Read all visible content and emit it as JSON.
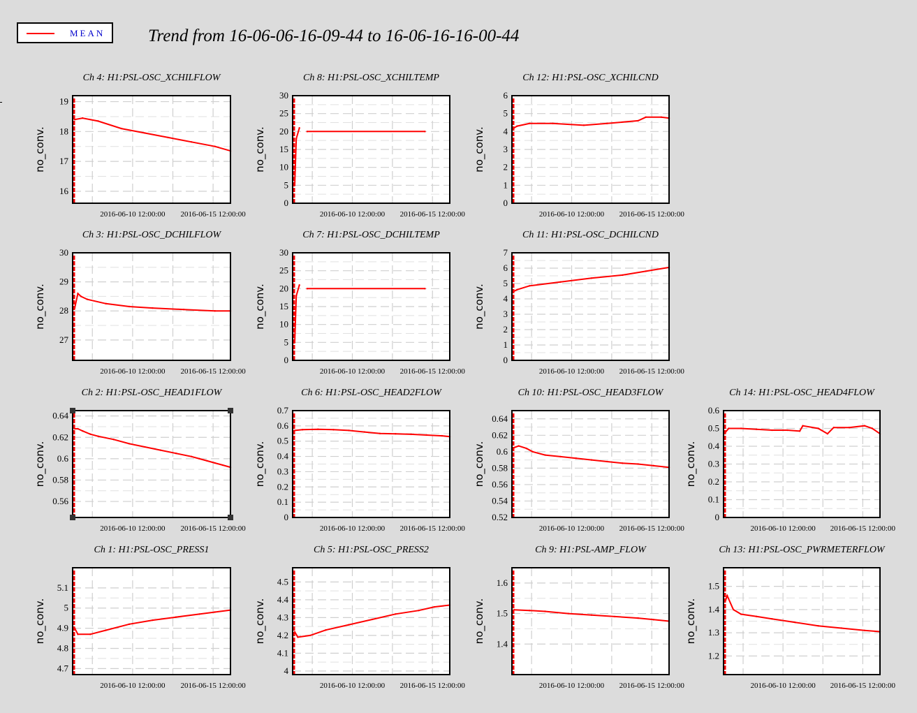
{
  "title": "Trend from 16-06-06-16-09-44 to 16-06-16-16-00-44",
  "legend": {
    "label": "MEAN",
    "color": "#ff0000"
  },
  "chart_data": [
    {
      "type": "line",
      "title": "Ch 4: H1:PSL-OSC_XCHILFLOW",
      "ylabel": "no_conv.",
      "ylim": [
        15.6,
        19.2
      ],
      "yticks": [
        16,
        17,
        18,
        19
      ],
      "ytick_labels": [
        "16",
        "17",
        "18",
        "19"
      ],
      "xtick_labels": [
        "2016-06-10 12:00:00",
        "2016-06-15 12:00:00"
      ],
      "series": [
        {
          "x": [
            0.0,
            0.05,
            0.15,
            0.3,
            0.45,
            0.6,
            0.75,
            0.9,
            1.0
          ],
          "y": [
            18.4,
            18.45,
            18.35,
            18.1,
            17.95,
            17.8,
            17.65,
            17.5,
            17.35
          ]
        }
      ]
    },
    {
      "type": "line",
      "title": "Ch 8: H1:PSL-OSC_XCHILTEMP",
      "ylabel": "no_conv.",
      "ylim": [
        0,
        30
      ],
      "yticks": [
        0,
        5,
        10,
        15,
        20,
        25,
        30
      ],
      "ytick_labels": [
        "0",
        "5",
        "10",
        "15",
        "20",
        "25",
        "30"
      ],
      "xtick_labels": [
        "2016-06-10 12:00:00",
        "2016-06-15 12:00:00"
      ],
      "series": [
        {
          "x": [
            0.0,
            0.01,
            0.03
          ],
          "y": [
            5,
            18,
            21
          ]
        },
        {
          "x": [
            0.08,
            0.84
          ],
          "y": [
            20,
            20
          ]
        }
      ]
    },
    {
      "type": "line",
      "title": "Ch 12: H1:PSL-OSC_XCHILCND",
      "ylabel": "no_conv.",
      "ylim": [
        0,
        6
      ],
      "yticks": [
        0,
        1,
        2,
        3,
        4,
        5,
        6
      ],
      "ytick_labels": [
        "0",
        "1",
        "2",
        "3",
        "4",
        "5",
        "6"
      ],
      "xtick_labels": [
        "2016-06-10 12:00:00",
        "2016-06-15 12:00:00"
      ],
      "series": [
        {
          "x": [
            0.0,
            0.02,
            0.1,
            0.25,
            0.45,
            0.6,
            0.8,
            0.85,
            0.95,
            1.0
          ],
          "y": [
            4.2,
            4.3,
            4.45,
            4.45,
            4.35,
            4.45,
            4.6,
            4.8,
            4.8,
            4.75
          ]
        }
      ]
    },
    {
      "type": "line",
      "title": "Ch 3: H1:PSL-OSC_DCHILFLOW",
      "ylabel": "no_conv.",
      "ylim": [
        26.3,
        30
      ],
      "yticks": [
        27,
        28,
        29,
        30
      ],
      "ytick_labels": [
        "27",
        "28",
        "29",
        "30"
      ],
      "xtick_labels": [
        "2016-06-10 12:00:00",
        "2016-06-15 12:00:00"
      ],
      "series": [
        {
          "x": [
            0.0,
            0.02,
            0.04,
            0.08,
            0.2,
            0.35,
            0.5,
            0.7,
            0.9,
            1.0
          ],
          "y": [
            28.1,
            28.6,
            28.5,
            28.4,
            28.25,
            28.15,
            28.1,
            28.05,
            28.0,
            28.0
          ]
        }
      ]
    },
    {
      "type": "line",
      "title": "Ch 7: H1:PSL-OSC_DCHILTEMP",
      "ylabel": "no_conv.",
      "ylim": [
        0,
        30
      ],
      "yticks": [
        0,
        5,
        10,
        15,
        20,
        25,
        30
      ],
      "ytick_labels": [
        "0",
        "5",
        "10",
        "15",
        "20",
        "25",
        "30"
      ],
      "xtick_labels": [
        "2016-06-10 12:00:00",
        "2016-06-15 12:00:00"
      ],
      "series": [
        {
          "x": [
            0.0,
            0.01,
            0.03
          ],
          "y": [
            5,
            18,
            21
          ]
        },
        {
          "x": [
            0.08,
            0.84
          ],
          "y": [
            20,
            20
          ]
        }
      ]
    },
    {
      "type": "line",
      "title": "Ch 11: H1:PSL-OSC_DCHILCND",
      "ylabel": "no_conv.",
      "ylim": [
        0,
        7
      ],
      "yticks": [
        0,
        1,
        2,
        3,
        4,
        5,
        6,
        7
      ],
      "ytick_labels": [
        "0",
        "1",
        "2",
        "3",
        "4",
        "5",
        "6",
        "7"
      ],
      "xtick_labels": [
        "2016-06-10 12:00:00",
        "2016-06-15 12:00:00"
      ],
      "series": [
        {
          "x": [
            0.0,
            0.02,
            0.1,
            0.3,
            0.5,
            0.7,
            0.85,
            1.0
          ],
          "y": [
            4.5,
            4.6,
            4.85,
            5.1,
            5.35,
            5.55,
            5.8,
            6.05
          ]
        }
      ]
    },
    {
      "type": "line",
      "title": "Ch 2: H1:PSL-OSC_HEAD1FLOW",
      "ylabel": "no_conv.",
      "ylim": [
        0.545,
        0.645
      ],
      "yticks": [
        0.56,
        0.58,
        0.6,
        0.62,
        0.64
      ],
      "ytick_labels": [
        "0.56",
        "0.58",
        "0.6",
        "0.62",
        "0.64"
      ],
      "xtick_labels": [
        "2016-06-10 12:00:00",
        "2016-06-15 12:00:00"
      ],
      "selected": true,
      "series": [
        {
          "x": [
            0.0,
            0.02,
            0.05,
            0.1,
            0.15,
            0.25,
            0.35,
            0.45,
            0.55,
            0.65,
            0.75,
            0.8,
            0.85,
            0.9,
            0.95,
            1.0
          ],
          "y": [
            0.628,
            0.628,
            0.626,
            0.623,
            0.621,
            0.618,
            0.614,
            0.611,
            0.608,
            0.605,
            0.602,
            0.6,
            0.598,
            0.596,
            0.594,
            0.592
          ]
        }
      ]
    },
    {
      "type": "line",
      "title": "Ch 6: H1:PSL-OSC_HEAD2FLOW",
      "ylabel": "no_conv.",
      "ylim": [
        0,
        0.7
      ],
      "yticks": [
        0,
        0.1,
        0.2,
        0.3,
        0.4,
        0.5,
        0.6,
        0.7
      ],
      "ytick_labels": [
        "0",
        "0.1",
        "0.2",
        "0.3",
        "0.4",
        "0.5",
        "0.6",
        "0.7"
      ],
      "xtick_labels": [
        "2016-06-10 12:00:00",
        "2016-06-15 12:00:00"
      ],
      "series": [
        {
          "x": [
            0.0,
            0.05,
            0.15,
            0.25,
            0.35,
            0.45,
            0.55,
            0.65,
            0.75,
            0.85,
            0.95,
            1.0
          ],
          "y": [
            0.57,
            0.575,
            0.578,
            0.575,
            0.57,
            0.56,
            0.55,
            0.548,
            0.545,
            0.54,
            0.535,
            0.53
          ]
        }
      ]
    },
    {
      "type": "line",
      "title": "Ch 10: H1:PSL-OSC_HEAD3FLOW",
      "ylabel": "no_conv.",
      "ylim": [
        0.52,
        0.65
      ],
      "yticks": [
        0.52,
        0.54,
        0.56,
        0.58,
        0.6,
        0.62,
        0.64
      ],
      "ytick_labels": [
        "0.52",
        "0.54",
        "0.56",
        "0.58",
        "0.6",
        "0.62",
        "0.64"
      ],
      "xtick_labels": [
        "2016-06-10 12:00:00",
        "2016-06-15 12:00:00"
      ],
      "series": [
        {
          "x": [
            0.0,
            0.03,
            0.08,
            0.12,
            0.2,
            0.3,
            0.4,
            0.5,
            0.6,
            0.7,
            0.8,
            0.9,
            1.0
          ],
          "y": [
            0.605,
            0.607,
            0.604,
            0.6,
            0.596,
            0.594,
            0.592,
            0.59,
            0.588,
            0.586,
            0.585,
            0.583,
            0.581
          ]
        }
      ]
    },
    {
      "type": "line",
      "title": "Ch 14: H1:PSL-OSC_HEAD4FLOW",
      "ylabel": "no_conv.",
      "ylim": [
        0,
        0.6
      ],
      "yticks": [
        0,
        0.1,
        0.2,
        0.3,
        0.4,
        0.5,
        0.6
      ],
      "ytick_labels": [
        "0",
        "0.1",
        "0.2",
        "0.3",
        "0.4",
        "0.5",
        "0.6"
      ],
      "xtick_labels": [
        "2016-06-10 12:00:00",
        "2016-06-15 12:00:00"
      ],
      "series": [
        {
          "x": [
            0.0,
            0.02,
            0.1,
            0.2,
            0.3,
            0.4,
            0.48,
            0.5,
            0.6,
            0.66,
            0.7,
            0.8,
            0.9,
            0.95,
            1.0
          ],
          "y": [
            0.48,
            0.5,
            0.5,
            0.495,
            0.49,
            0.49,
            0.485,
            0.515,
            0.5,
            0.47,
            0.505,
            0.505,
            0.515,
            0.5,
            0.47
          ]
        }
      ]
    },
    {
      "type": "line",
      "title": "Ch 1: H1:PSL-OSC_PRESS1",
      "ylabel": "no_conv.",
      "ylim": [
        4.67,
        5.2
      ],
      "yticks": [
        4.7,
        4.8,
        4.9,
        5,
        5.1
      ],
      "ytick_labels": [
        "4.7",
        "4.8",
        "4.9",
        "5",
        "5.1"
      ],
      "xtick_labels": [
        "2016-06-10 12:00:00",
        "2016-06-15 12:00:00"
      ],
      "series": [
        {
          "x": [
            0.0,
            0.02,
            0.1,
            0.2,
            0.35,
            0.5,
            0.65,
            0.8,
            0.9,
            1.0
          ],
          "y": [
            4.9,
            4.87,
            4.87,
            4.89,
            4.92,
            4.94,
            4.955,
            4.97,
            4.98,
            4.99
          ]
        }
      ]
    },
    {
      "type": "line",
      "title": "Ch 5: H1:PSL-OSC_PRESS2",
      "ylabel": "no_conv.",
      "ylim": [
        3.98,
        4.58
      ],
      "yticks": [
        4,
        4.1,
        4.2,
        4.3,
        4.4,
        4.5
      ],
      "ytick_labels": [
        "4",
        "4.1",
        "4.2",
        "4.3",
        "4.4",
        "4.5"
      ],
      "xtick_labels": [
        "2016-06-10 12:00:00",
        "2016-06-15 12:00:00"
      ],
      "series": [
        {
          "x": [
            0.0,
            0.02,
            0.1,
            0.2,
            0.35,
            0.5,
            0.65,
            0.8,
            0.9,
            1.0
          ],
          "y": [
            4.22,
            4.19,
            4.2,
            4.23,
            4.26,
            4.29,
            4.32,
            4.34,
            4.36,
            4.37
          ]
        }
      ]
    },
    {
      "type": "line",
      "title": "Ch 9: H1:PSL-AMP_FLOW",
      "ylabel": "no_conv.",
      "ylim": [
        1.3,
        1.65
      ],
      "yticks": [
        1.4,
        1.5,
        1.6
      ],
      "ytick_labels": [
        "1.4",
        "1.5",
        "1.6"
      ],
      "xtick_labels": [
        "2016-06-10 12:00:00",
        "2016-06-15 12:00:00"
      ],
      "series": [
        {
          "x": [
            0.0,
            0.1,
            0.2,
            0.35,
            0.5,
            0.65,
            0.8,
            0.9,
            1.0
          ],
          "y": [
            1.512,
            1.51,
            1.507,
            1.5,
            1.495,
            1.49,
            1.485,
            1.48,
            1.475
          ]
        }
      ]
    },
    {
      "type": "line",
      "title": "Ch 13: H1:PSL-OSC_PWRMETERFLOW",
      "ylabel": "no_conv.",
      "ylim": [
        1.12,
        1.58
      ],
      "yticks": [
        1.2,
        1.3,
        1.4,
        1.5
      ],
      "ytick_labels": [
        "1.2",
        "1.3",
        "1.4",
        "1.5"
      ],
      "xtick_labels": [
        "2016-06-10 12:00:00",
        "2016-06-15 12:00:00"
      ],
      "series": [
        {
          "x": [
            0.0,
            0.01,
            0.05,
            0.1,
            0.2,
            0.3,
            0.45,
            0.6,
            0.75,
            0.9,
            1.0
          ],
          "y": [
            1.44,
            1.46,
            1.4,
            1.38,
            1.37,
            1.36,
            1.345,
            1.33,
            1.32,
            1.31,
            1.305
          ]
        }
      ]
    }
  ]
}
